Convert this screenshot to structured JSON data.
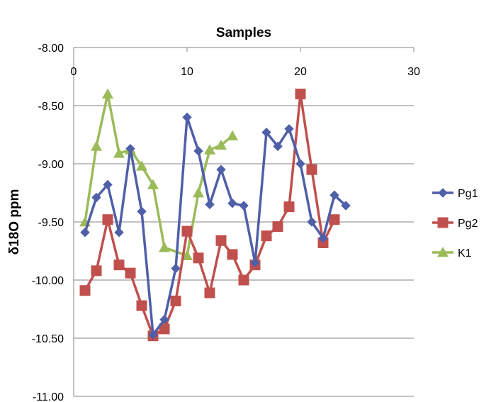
{
  "chart_data": {
    "type": "line",
    "title": "Samples",
    "xlabel": "",
    "ylabel": "δ18O  ppm",
    "xlim": [
      0,
      30
    ],
    "ylim": [
      -11.0,
      -8.0
    ],
    "x_ticks": [
      "0",
      "10",
      "20",
      "30"
    ],
    "y_ticks": [
      "-8.00",
      "-8.50",
      "-9.00",
      "-9.50",
      "-10.00",
      "-10.50",
      "-11.00"
    ],
    "x_axis_position": "top",
    "grid": "horizontal",
    "legend_position": "right",
    "series": [
      {
        "name": "Pg1",
        "color": "#4F5FA8",
        "marker": "diamond",
        "x": [
          1,
          2,
          3,
          4,
          5,
          6,
          7,
          8,
          9,
          10,
          11,
          12,
          13,
          14,
          15,
          16,
          17,
          18,
          19,
          20,
          21,
          22,
          23,
          24
        ],
        "y": [
          -9.59,
          -9.29,
          -9.18,
          -9.59,
          -8.87,
          -9.41,
          -10.47,
          -10.34,
          -9.9,
          -8.6,
          -8.89,
          -9.35,
          -9.05,
          -9.34,
          -9.36,
          -9.85,
          -8.73,
          -8.85,
          -8.7,
          -9.0,
          -9.5,
          -9.64,
          -9.27,
          -9.36
        ]
      },
      {
        "name": "Pg2",
        "color": "#C0504D",
        "marker": "square",
        "x": [
          1,
          2,
          3,
          4,
          5,
          6,
          7,
          8,
          9,
          10,
          11,
          12,
          13,
          14,
          15,
          16,
          17,
          18,
          19,
          20,
          21,
          22,
          23
        ],
        "y": [
          -10.09,
          -9.92,
          -9.48,
          -9.87,
          -9.94,
          -10.22,
          -10.48,
          -10.42,
          -10.18,
          -9.58,
          -9.81,
          -10.11,
          -9.66,
          -9.78,
          -10.0,
          -9.87,
          -9.62,
          -9.54,
          -9.37,
          -8.4,
          -9.05,
          -9.68,
          -9.48
        ]
      },
      {
        "name": "K1",
        "color": "#9BBB59",
        "marker": "triangle",
        "x": [
          1,
          2,
          3,
          4,
          5,
          6,
          7,
          8,
          10,
          11,
          12,
          13,
          14
        ],
        "y": [
          -9.5,
          -8.85,
          -8.4,
          -8.91,
          -8.88,
          -9.02,
          -9.18,
          -9.72,
          -9.79,
          -9.25,
          -8.88,
          -8.84,
          -8.76
        ]
      }
    ]
  }
}
